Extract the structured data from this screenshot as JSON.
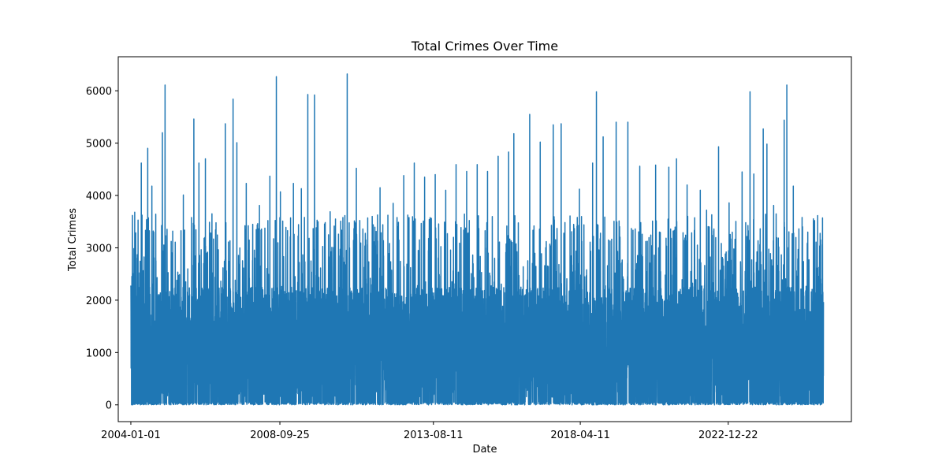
{
  "chart_data": {
    "type": "line",
    "title": "Total Crimes Over Time",
    "xlabel": "Date",
    "ylabel": "Total Crimes",
    "x_range": [
      "2003-08-08",
      "2026-11-20"
    ],
    "ylim": [
      -320,
      6650
    ],
    "x_ticks": [
      "2004-01-01",
      "2008-09-25",
      "2013-08-11",
      "2018-04-11",
      "2022-12-22"
    ],
    "y_ticks": [
      0,
      1000,
      2000,
      3000,
      4000,
      5000,
      6000
    ],
    "grid": false,
    "legend": "none",
    "line_color": "#1f77b4",
    "series": [
      {
        "x_start": "2004-01-01",
        "x_end": "2025-12-31",
        "peaks": [
          [
            "2004-01-01",
            2280
          ],
          [
            "2004-02-15",
            3680
          ],
          [
            "2004-05-01",
            4620
          ],
          [
            "2004-07-15",
            4900
          ],
          [
            "2004-09-01",
            4180
          ],
          [
            "2005-01-01",
            5200
          ],
          [
            "2005-02-01",
            6110
          ],
          [
            "2005-05-01",
            3320
          ],
          [
            "2005-09-01",
            4010
          ],
          [
            "2006-01-01",
            5460
          ],
          [
            "2006-03-01",
            4620
          ],
          [
            "2006-05-15",
            4700
          ],
          [
            "2006-09-15",
            3480
          ],
          [
            "2007-01-01",
            5370
          ],
          [
            "2007-04-01",
            5840
          ],
          [
            "2007-05-15",
            5010
          ],
          [
            "2007-09-01",
            4230
          ],
          [
            "2008-02-01",
            3810
          ],
          [
            "2008-06-01",
            4370
          ],
          [
            "2008-08-15",
            6270
          ],
          [
            "2008-10-01",
            4070
          ],
          [
            "2009-03-01",
            4230
          ],
          [
            "2009-06-01",
            4130
          ],
          [
            "2009-08-15",
            5930
          ],
          [
            "2009-11-01",
            5920
          ],
          [
            "2010-05-01",
            3690
          ],
          [
            "2010-09-01",
            3510
          ],
          [
            "2010-11-15",
            6320
          ],
          [
            "2011-03-01",
            4520
          ],
          [
            "2011-09-01",
            3600
          ],
          [
            "2011-12-01",
            4150
          ],
          [
            "2012-05-01",
            3850
          ],
          [
            "2012-09-01",
            4380
          ],
          [
            "2013-01-01",
            4620
          ],
          [
            "2013-05-01",
            4350
          ],
          [
            "2013-09-01",
            4400
          ],
          [
            "2014-01-01",
            4100
          ],
          [
            "2014-05-01",
            4590
          ],
          [
            "2014-09-01",
            4460
          ],
          [
            "2015-01-01",
            4590
          ],
          [
            "2015-05-01",
            4460
          ],
          [
            "2015-09-01",
            4750
          ],
          [
            "2016-01-01",
            4830
          ],
          [
            "2016-03-01",
            5180
          ],
          [
            "2016-09-01",
            5550
          ],
          [
            "2017-01-01",
            5020
          ],
          [
            "2017-06-01",
            5350
          ],
          [
            "2017-09-01",
            5370
          ],
          [
            "2018-04-01",
            4120
          ],
          [
            "2018-09-01",
            4620
          ],
          [
            "2018-10-15",
            5980
          ],
          [
            "2019-01-01",
            5120
          ],
          [
            "2019-06-01",
            5400
          ],
          [
            "2019-10-15",
            5400
          ],
          [
            "2020-03-01",
            4560
          ],
          [
            "2020-09-01",
            4580
          ],
          [
            "2021-02-01",
            4540
          ],
          [
            "2021-05-01",
            4700
          ],
          [
            "2021-09-01",
            4200
          ],
          [
            "2022-02-01",
            4100
          ],
          [
            "2022-04-15",
            3720
          ],
          [
            "2022-09-01",
            4930
          ],
          [
            "2023-01-01",
            3860
          ],
          [
            "2023-06-01",
            4450
          ],
          [
            "2023-09-01",
            5980
          ],
          [
            "2023-10-15",
            4410
          ],
          [
            "2024-02-01",
            5270
          ],
          [
            "2024-03-15",
            4980
          ],
          [
            "2024-06-01",
            3810
          ],
          [
            "2024-10-01",
            5440
          ],
          [
            "2024-11-01",
            6110
          ],
          [
            "2025-01-15",
            4180
          ]
        ]
      }
    ]
  }
}
